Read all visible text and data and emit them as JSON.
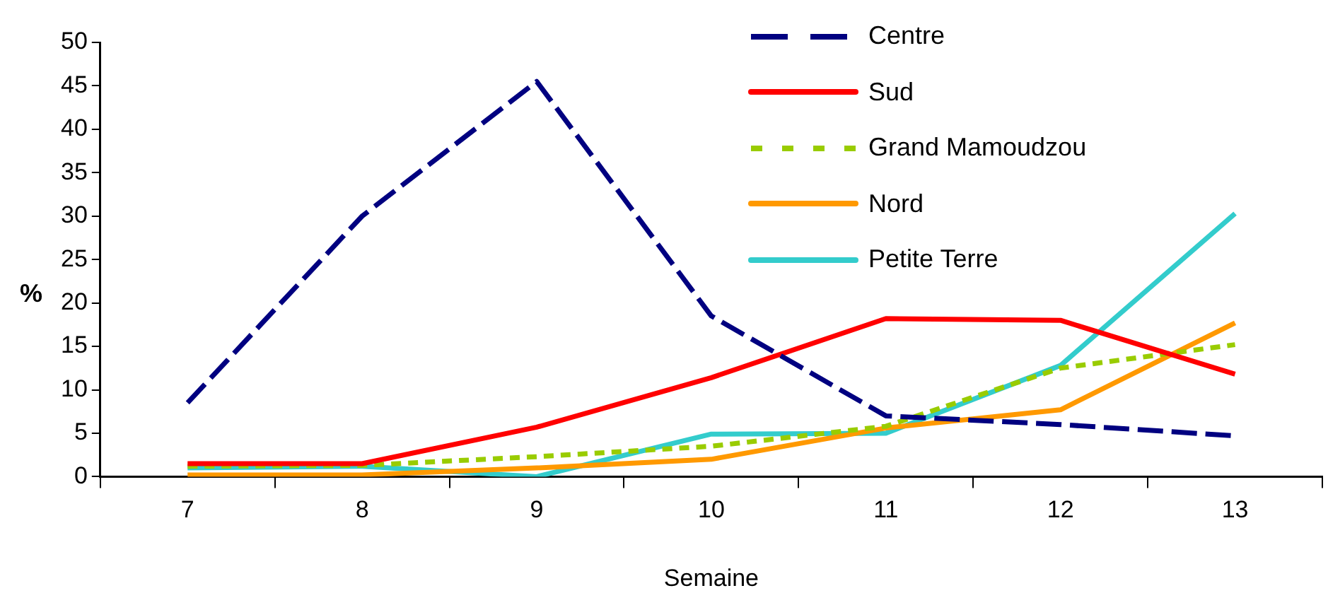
{
  "chart_data": {
    "type": "line",
    "xlabel": "Semaine",
    "ylabel": "%",
    "categories": [
      "7",
      "8",
      "9",
      "10",
      "11",
      "12",
      "13"
    ],
    "ylim": [
      0,
      50
    ],
    "yticks": [
      0,
      5,
      10,
      15,
      20,
      25,
      30,
      35,
      40,
      45,
      50
    ],
    "grid": false,
    "legend": "top right",
    "marker": "none",
    "series": [
      {
        "name": "Centre",
        "color": "#000080",
        "line_style": "dashed",
        "values": [
          8.5,
          30,
          45.5,
          18.5,
          7,
          6,
          4.7
        ]
      },
      {
        "name": "Sud",
        "color": "#ff0000",
        "line_style": "solid",
        "values": [
          1.5,
          1.5,
          5.7,
          11.4,
          18.2,
          18,
          11.8
        ]
      },
      {
        "name": "Grand Mamoudzou",
        "color": "#99cc00",
        "line_style": "dotted",
        "values": [
          1.2,
          1.3,
          2.3,
          3.5,
          5.8,
          12.5,
          15.2
        ]
      },
      {
        "name": "Nord",
        "color": "#ff9900",
        "line_style": "solid",
        "values": [
          0.2,
          0.2,
          1,
          2,
          5.6,
          7.7,
          17.7
        ]
      },
      {
        "name": "Petite Terre",
        "color": "#33cccc",
        "line_style": "solid",
        "values": [
          1,
          1.2,
          0,
          4.9,
          5,
          12.8,
          30.3
        ]
      }
    ]
  }
}
